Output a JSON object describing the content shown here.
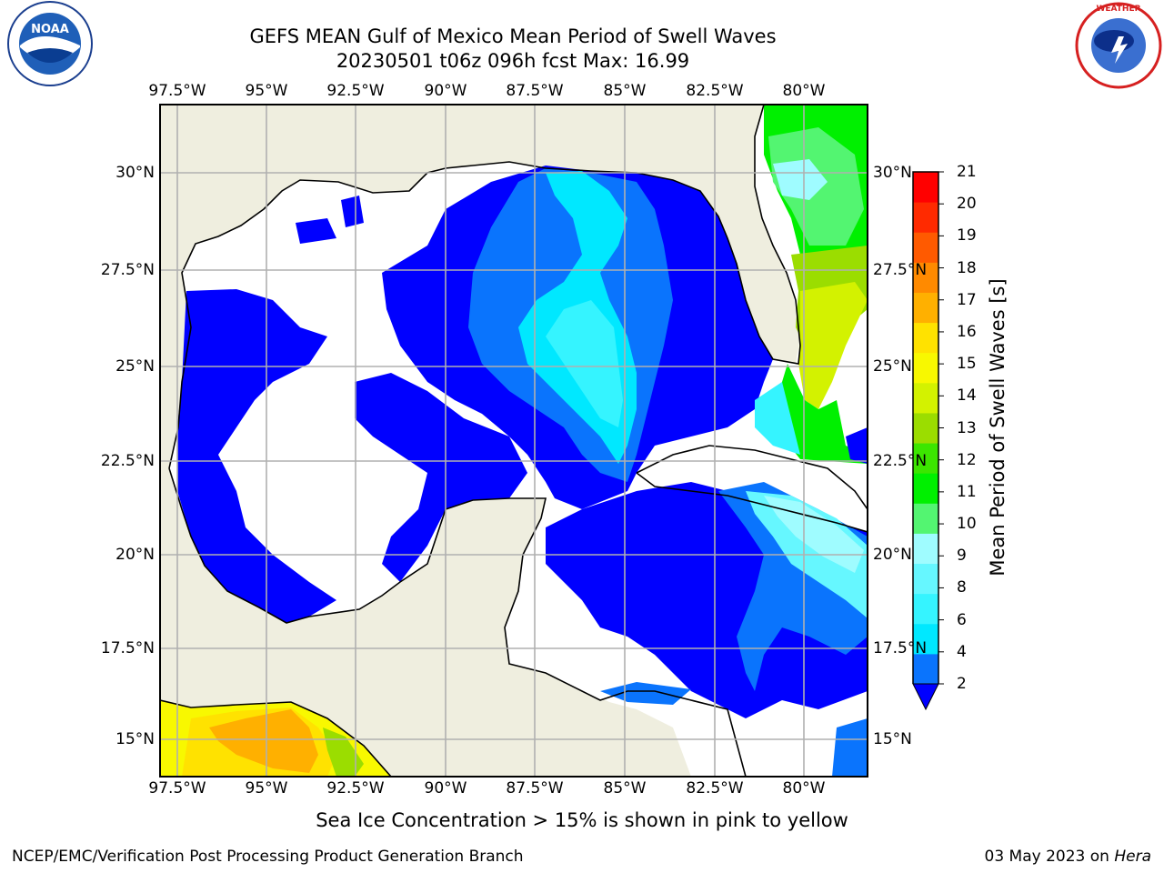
{
  "title": {
    "line1": "GEFS MEAN Gulf of Mexico Mean Period of Swell Waves",
    "line2": "20230501 t06z 096h fcst   Max: 16.99"
  },
  "map": {
    "lon_ticks": [
      "97.5°W",
      "95°W",
      "92.5°W",
      "90°W",
      "87.5°W",
      "85°W",
      "82.5°W",
      "80°W"
    ],
    "lat_ticks": [
      "30°N",
      "27.5°N",
      "25°N",
      "22.5°N",
      "20°N",
      "17.5°N",
      "15°N"
    ],
    "land_color": "#efeedf",
    "no_data_color": "#ffffff",
    "grid": true
  },
  "colorbar": {
    "label": "Mean Period of Swell Waves [s]",
    "ticks": [
      "2",
      "4",
      "6",
      "8",
      "9",
      "10",
      "11",
      "12",
      "13",
      "14",
      "15",
      "16",
      "17",
      "18",
      "19",
      "20",
      "21"
    ],
    "colors": [
      "#0a74fd",
      "#00e8ff",
      "#35f4ff",
      "#66f7ff",
      "#9ffcff",
      "#53f571",
      "#00f000",
      "#3ce600",
      "#9bdd00",
      "#d3f200",
      "#f8f800",
      "#ffe200",
      "#ffb000",
      "#ff8a00",
      "#ff5a00",
      "#ff2a00",
      "#ff0000"
    ],
    "extend_min_color": "#0000ff"
  },
  "note": "Sea Ice Concentration > 15% is shown in pink to yellow",
  "footer": {
    "left": "NCEP/EMC/Verification Post Processing Product Generation Branch",
    "date": "03 May 2023 on ",
    "machine": "Hera"
  },
  "logos": {
    "noaa": "NOAA",
    "nws": "NATIONAL WEATHER SERVICE"
  }
}
